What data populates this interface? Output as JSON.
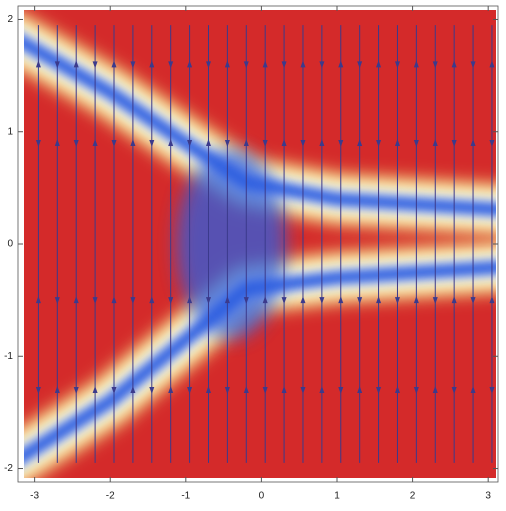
{
  "chart_data": {
    "type": "streamdensity",
    "xlim": [
      -3.22,
      3.13
    ],
    "ylim": [
      -2.12,
      2.12
    ],
    "xticks": [
      -3,
      -2,
      -1,
      0,
      1,
      2,
      3
    ],
    "yticks": [
      -2,
      -1,
      0,
      1,
      2
    ],
    "stream_x": [
      -2.95,
      -2.7,
      -2.45,
      -2.2,
      -1.95,
      -1.7,
      -1.45,
      -1.2,
      -0.95,
      -0.7,
      -0.45,
      -0.2,
      0.05,
      0.3,
      0.55,
      0.8,
      1.05,
      1.3,
      1.55,
      1.8,
      2.05,
      2.3,
      2.55,
      2.8,
      3.05
    ],
    "stream_color": "#3b3a8c",
    "color_scheme": [
      "#d42a2a",
      "#f5e67a",
      "#ffffff",
      "#2f5fe0"
    ]
  }
}
